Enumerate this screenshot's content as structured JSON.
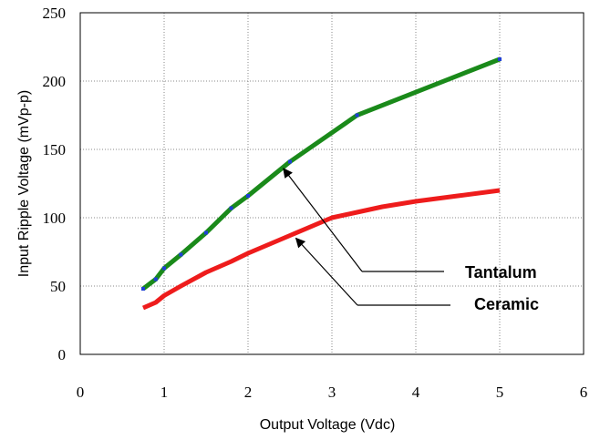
{
  "chart_data": {
    "type": "line",
    "title": "",
    "xlabel": "Output Voltage (Vdc)",
    "ylabel": "Input Ripple Voltage (mVp-p)",
    "xlim": [
      0,
      6
    ],
    "ylim": [
      0,
      250
    ],
    "x_ticks": [
      "0",
      "1",
      "2",
      "3",
      "4",
      "5",
      "6"
    ],
    "y_ticks": [
      "0",
      "50",
      "100",
      "150",
      "200",
      "250"
    ],
    "grid": "vertical and horizontal dotted",
    "series": [
      {
        "color": "#1a8a1a",
        "marker_color": "#1f3fd6",
        "x": [
          0.75,
          0.9,
          1.0,
          1.2,
          1.5,
          1.8,
          2.0,
          2.5,
          3.3,
          5.0
        ],
        "y": [
          48,
          55,
          63,
          73,
          89,
          107,
          116,
          141,
          175,
          216
        ]
      },
      {
        "color": "#ee1c1c",
        "x": [
          0.75,
          0.9,
          1.0,
          1.2,
          1.5,
          1.8,
          2.0,
          2.5,
          3.0,
          3.3,
          3.6,
          4.0,
          4.5,
          5.0
        ],
        "y": [
          34,
          38,
          43,
          50,
          60,
          68,
          74,
          87,
          100,
          104,
          108,
          112,
          116,
          120
        ]
      }
    ],
    "annotations": [
      {
        "text": "Tantalum",
        "arrow_to": [
          2.4,
          138
        ]
      },
      {
        "text": "Ceramic",
        "arrow_to": [
          2.55,
          87
        ]
      }
    ]
  }
}
